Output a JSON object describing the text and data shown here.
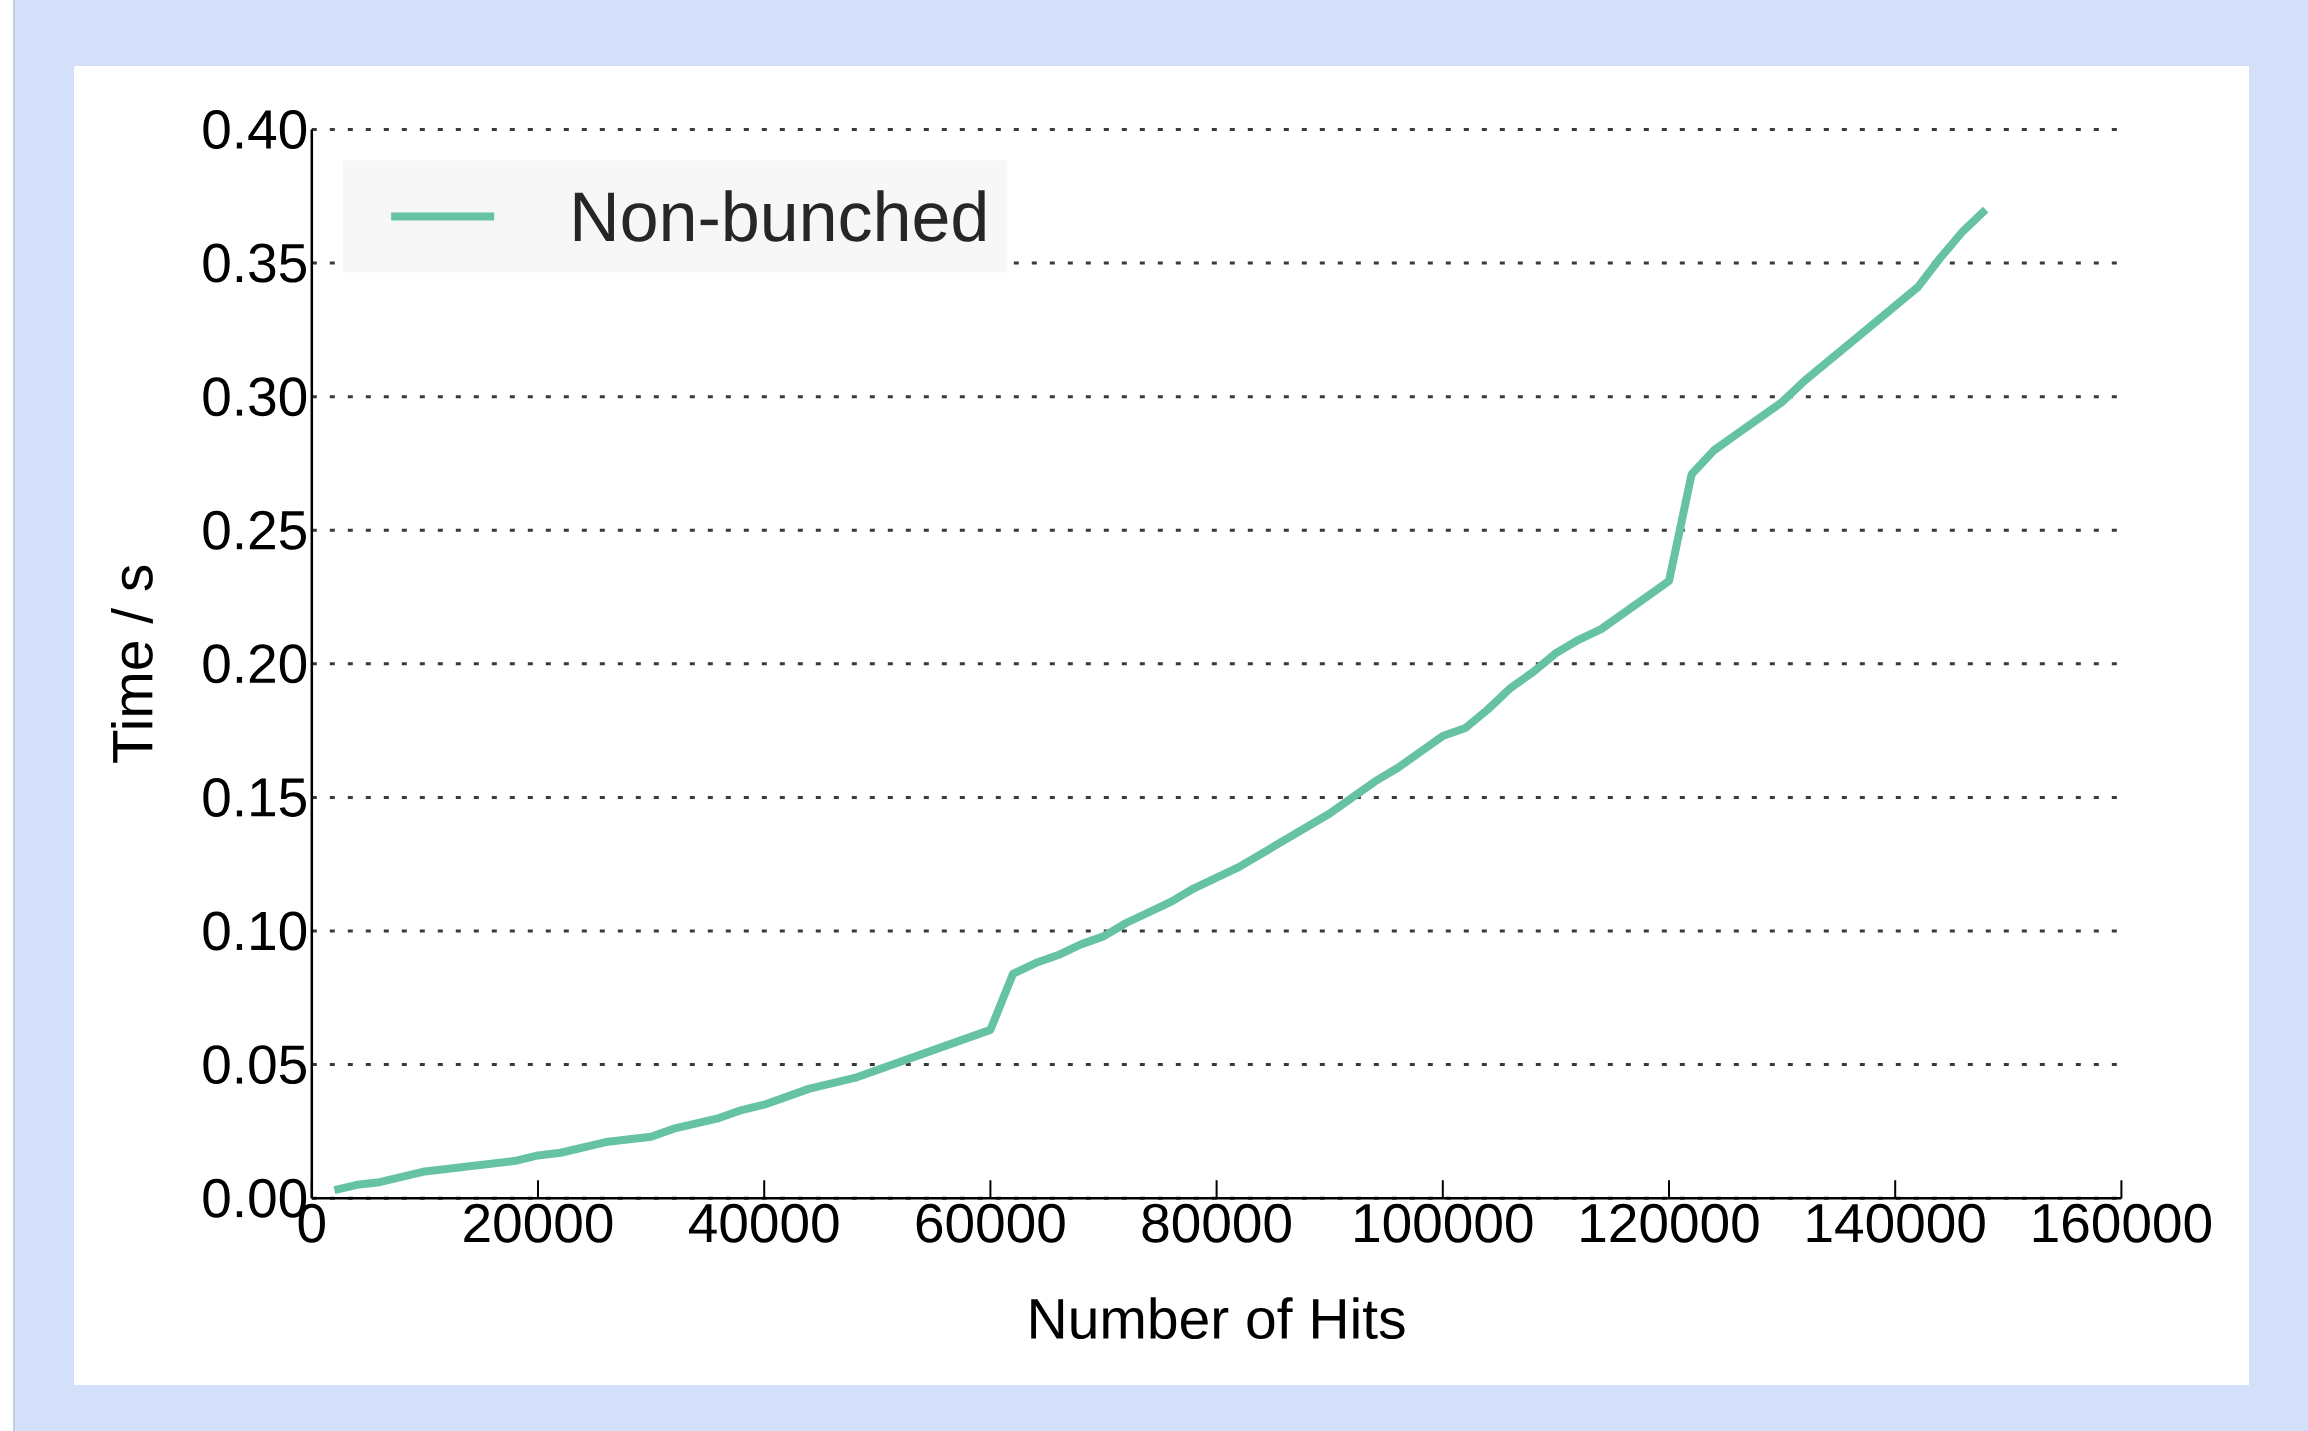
{
  "chart_data": {
    "type": "line",
    "xlabel": "Number of Hits",
    "ylabel": "Time / s",
    "x": [
      2000,
      4000,
      6000,
      10000,
      18000,
      20000,
      22000,
      26000,
      30000,
      32000,
      36000,
      38000,
      40000,
      44000,
      48000,
      60000,
      62000,
      64000,
      66000,
      68000,
      70000,
      72000,
      76000,
      78000,
      82000,
      90000,
      94000,
      96000,
      100000,
      102000,
      104000,
      106000,
      108000,
      110000,
      112000,
      114000,
      120000,
      122000,
      124000,
      126000,
      130000,
      132000,
      138000,
      140000,
      142000,
      144000,
      146000,
      148000
    ],
    "series": [
      {
        "name": "Non-bunched",
        "color": "#66c2a5",
        "values": [
          0.003,
          0.005,
          0.006,
          0.01,
          0.014,
          0.016,
          0.017,
          0.021,
          0.023,
          0.026,
          0.03,
          0.033,
          0.035,
          0.041,
          0.045,
          0.063,
          0.084,
          0.088,
          0.091,
          0.095,
          0.098,
          0.103,
          0.111,
          0.116,
          0.124,
          0.144,
          0.156,
          0.161,
          0.173,
          0.176,
          0.183,
          0.191,
          0.197,
          0.204,
          0.209,
          0.213,
          0.231,
          0.271,
          0.28,
          0.286,
          0.298,
          0.306,
          0.327,
          0.334,
          0.341,
          0.352,
          0.362,
          0.37
        ]
      }
    ],
    "xlim": [
      0,
      160000
    ],
    "xticks": [
      0,
      20000,
      40000,
      60000,
      80000,
      100000,
      120000,
      140000,
      160000
    ],
    "ylim": [
      0,
      0.4
    ],
    "yticks": [
      {
        "value": 0,
        "label": "0.00"
      },
      {
        "value": 0.05,
        "label": "0.05"
      },
      {
        "value": 0.1,
        "label": "0.10"
      },
      {
        "value": 0.15,
        "label": "0.15"
      },
      {
        "value": 0.2,
        "label": "0.20"
      },
      {
        "value": 0.25,
        "label": "0.25"
      },
      {
        "value": 0.3,
        "label": "0.30"
      },
      {
        "value": 0.35,
        "label": "0.35"
      },
      {
        "value": 0.4,
        "label": "0.40"
      }
    ],
    "grid": "y",
    "legend": "top left",
    "line_style": "solid"
  }
}
